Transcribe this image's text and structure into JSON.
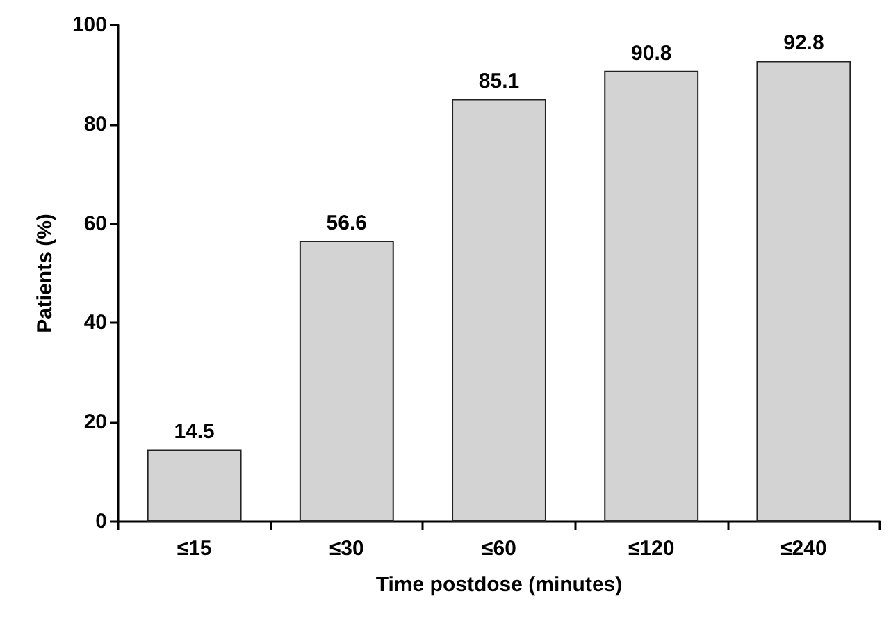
{
  "chart_data": {
    "type": "bar",
    "xlabel": "Time postdose (minutes)",
    "ylabel": "Patients (%)",
    "categories": [
      "≤15",
      "≤30",
      "≤60",
      "≤120",
      "≤240"
    ],
    "values": [
      14.5,
      56.6,
      85.1,
      90.8,
      92.8
    ],
    "color": "#d3d3d3",
    "ylim": [
      0,
      100
    ],
    "yticks": [
      0,
      20,
      40,
      60,
      80,
      100
    ],
    "grid": false,
    "data_labels": true
  }
}
